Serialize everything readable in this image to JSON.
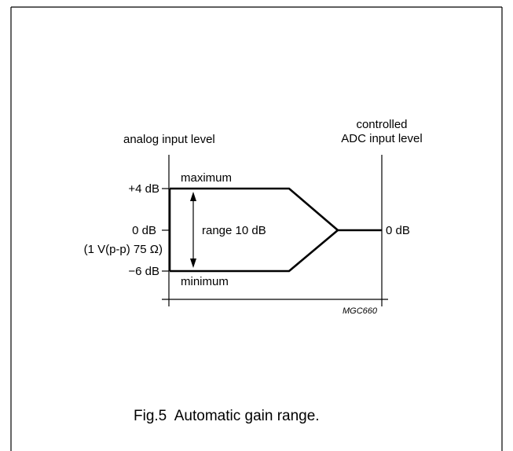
{
  "diagram": {
    "left_axis_title": "analog input level",
    "right_axis_title_line1": "controlled",
    "right_axis_title_line2": "ADC input level",
    "level_plus4": "+4 dB",
    "level_0": "0 dB",
    "level_0_note": "(1 V(p-p) 75 Ω)",
    "level_minus6": "−6 dB",
    "upper_label": "maximum",
    "lower_label": "minimum",
    "range_label": "range 10 dB",
    "output_level": "0 dB",
    "figure_code": "MGC660"
  },
  "caption": "Fig.5  Automatic gain range."
}
